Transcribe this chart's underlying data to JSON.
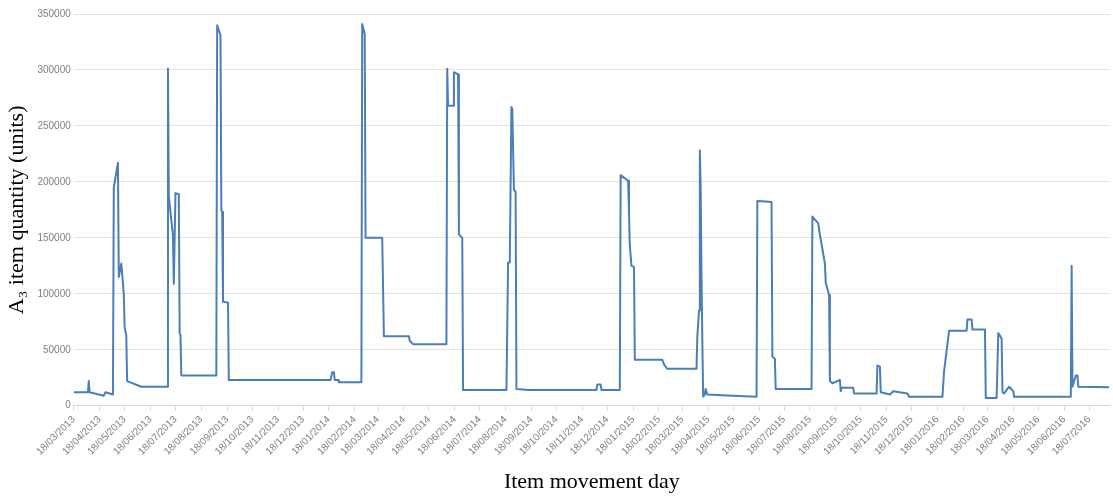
{
  "chart_data": {
    "type": "line",
    "xlabel": "Item movement day",
    "ylabel": "A₃ item quantity (units)",
    "color": "#4a7ebb",
    "grid": "y",
    "legend": false,
    "marker": "none",
    "line_style": "solid",
    "xlim": [
      "2013-03-18",
      "2016-08-12"
    ],
    "ylim": [
      0,
      350000
    ],
    "yticks": [
      0,
      50000,
      100000,
      150000,
      200000,
      250000,
      300000,
      350000
    ],
    "xticks": [
      {
        "value": "2013-03-18",
        "label": "18/03/2013"
      },
      {
        "value": "2013-04-18",
        "label": "18/04/2013"
      },
      {
        "value": "2013-05-18",
        "label": "18/05/2013"
      },
      {
        "value": "2013-06-18",
        "label": "18/06/2013"
      },
      {
        "value": "2013-07-18",
        "label": "18/07/2013"
      },
      {
        "value": "2013-08-18",
        "label": "18/08/2013"
      },
      {
        "value": "2013-09-18",
        "label": "18/09/2013"
      },
      {
        "value": "2013-10-18",
        "label": "18/10/2013"
      },
      {
        "value": "2013-11-18",
        "label": "18/11/2013"
      },
      {
        "value": "2013-12-18",
        "label": "18/12/2013"
      },
      {
        "value": "2014-01-18",
        "label": "18/01/2014"
      },
      {
        "value": "2014-02-18",
        "label": "18/02/2014"
      },
      {
        "value": "2014-03-18",
        "label": "18/03/2014"
      },
      {
        "value": "2014-04-18",
        "label": "18/04/2014"
      },
      {
        "value": "2014-05-18",
        "label": "18/05/2014"
      },
      {
        "value": "2014-06-18",
        "label": "18/06/2014"
      },
      {
        "value": "2014-07-18",
        "label": "18/07/2014"
      },
      {
        "value": "2014-08-18",
        "label": "18/08/2014"
      },
      {
        "value": "2014-09-18",
        "label": "18/09/2014"
      },
      {
        "value": "2014-10-18",
        "label": "18/10/2014"
      },
      {
        "value": "2014-11-18",
        "label": "18/11/2014"
      },
      {
        "value": "2014-12-18",
        "label": "18/12/2014"
      },
      {
        "value": "2015-01-18",
        "label": "18/01/2015"
      },
      {
        "value": "2015-02-18",
        "label": "18/02/2015"
      },
      {
        "value": "2015-03-18",
        "label": "18/03/2015"
      },
      {
        "value": "2015-04-18",
        "label": "18/04/2015"
      },
      {
        "value": "2015-05-18",
        "label": "18/05/2015"
      },
      {
        "value": "2015-06-18",
        "label": "18/06/2015"
      },
      {
        "value": "2015-07-18",
        "label": "18/07/2015"
      },
      {
        "value": "2015-08-18",
        "label": "18/08/2015"
      },
      {
        "value": "2015-09-18",
        "label": "18/09/2015"
      },
      {
        "value": "2015-10-18",
        "label": "18/10/2015"
      },
      {
        "value": "2015-11-18",
        "label": "18/11/2015"
      },
      {
        "value": "2015-12-18",
        "label": "18/12/2015"
      },
      {
        "value": "2016-01-18",
        "label": "18/01/2016"
      },
      {
        "value": "2016-02-18",
        "label": "18/02/2016"
      },
      {
        "value": "2016-03-18",
        "label": "18/03/2016"
      },
      {
        "value": "2016-04-18",
        "label": "18/04/2016"
      },
      {
        "value": "2016-05-18",
        "label": "18/05/2016"
      },
      {
        "value": "2016-06-18",
        "label": "18/06/2016"
      },
      {
        "value": "2016-07-18",
        "label": "18/07/2016"
      }
    ],
    "x": [
      "2013-03-18",
      "2013-04-04",
      "2013-04-05",
      "2013-04-06",
      "2013-04-23",
      "2013-04-25",
      "2013-05-04",
      "2013-05-05",
      "2013-05-10",
      "2013-05-11",
      "2013-05-14",
      "2013-05-17",
      "2013-05-18",
      "2013-05-20",
      "2013-05-21",
      "2013-06-07",
      "2013-07-08",
      "2013-07-09",
      "2013-07-10",
      "2013-07-15",
      "2013-07-16",
      "2013-07-18",
      "2013-07-22",
      "2013-07-23",
      "2013-07-24",
      "2013-07-25",
      "2013-09-05",
      "2013-09-06",
      "2013-09-10",
      "2013-09-11",
      "2013-09-12",
      "2013-09-13",
      "2013-09-19",
      "2013-09-20",
      "2014-01-20",
      "2014-01-22",
      "2014-01-24",
      "2014-01-25",
      "2014-01-29",
      "2014-01-30",
      "2014-02-26",
      "2014-02-27",
      "2014-03-02",
      "2014-03-03",
      "2014-03-23",
      "2014-03-25",
      "2014-04-24",
      "2014-04-25",
      "2014-04-29",
      "2014-06-08",
      "2014-06-09",
      "2014-06-10",
      "2014-06-16",
      "2014-06-17",
      "2014-06-22",
      "2014-06-23",
      "2014-06-27",
      "2014-06-28",
      "2014-08-19",
      "2014-08-21",
      "2014-08-23",
      "2014-08-25",
      "2014-08-26",
      "2014-08-28",
      "2014-08-30",
      "2014-08-31",
      "2014-09-15",
      "2014-12-05",
      "2014-12-06",
      "2014-12-10",
      "2014-12-11",
      "2015-01-02",
      "2015-01-03",
      "2015-01-12",
      "2015-01-13",
      "2015-01-14",
      "2015-01-16",
      "2015-01-19",
      "2015-01-20",
      "2015-02-22",
      "2015-02-24",
      "2015-02-28",
      "2015-04-04",
      "2015-04-05",
      "2015-04-07",
      "2015-04-08",
      "2015-04-09",
      "2015-04-10",
      "2015-04-11",
      "2015-04-12",
      "2015-04-14",
      "2015-04-15",
      "2015-04-17",
      "2015-05-17",
      "2015-06-15",
      "2015-06-16",
      "2015-07-03",
      "2015-07-04",
      "2015-07-07",
      "2015-07-08",
      "2015-08-20",
      "2015-08-21",
      "2015-08-28",
      "2015-08-30",
      "2015-09-05",
      "2015-09-06",
      "2015-09-10",
      "2015-09-11",
      "2015-09-14",
      "2015-09-23",
      "2015-09-24",
      "2015-09-25",
      "2015-10-09",
      "2015-10-10",
      "2015-11-06",
      "2015-11-07",
      "2015-11-10",
      "2015-11-11",
      "2015-11-22",
      "2015-11-26",
      "2015-12-13",
      "2015-12-15",
      "2016-01-24",
      "2016-01-26",
      "2016-02-01",
      "2016-02-22",
      "2016-02-23",
      "2016-02-28",
      "2016-02-29",
      "2016-03-15",
      "2016-03-16",
      "2016-03-29",
      "2016-03-31",
      "2016-04-04",
      "2016-04-05",
      "2016-04-07",
      "2016-04-13",
      "2016-04-18",
      "2016-04-19",
      "2016-06-26",
      "2016-06-27",
      "2016-06-28",
      "2016-07-02",
      "2016-07-04",
      "2016-07-05",
      "2016-08-11"
    ],
    "values": [
      12000,
      12000,
      22000,
      12000,
      9000,
      12000,
      10000,
      195000,
      217000,
      115000,
      127000,
      100000,
      70000,
      63000,
      22000,
      17000,
      17000,
      301000,
      187000,
      152000,
      109000,
      190000,
      189000,
      65000,
      63000,
      27000,
      27000,
      340000,
      331000,
      175000,
      173000,
      93000,
      92000,
      23000,
      23000,
      30000,
      30000,
      23000,
      23000,
      21000,
      21000,
      341000,
      332000,
      150000,
      150000,
      62000,
      62000,
      58000,
      55000,
      55000,
      301000,
      268000,
      268000,
      298000,
      296000,
      153000,
      150000,
      14000,
      14000,
      128000,
      128000,
      267000,
      265000,
      193000,
      191000,
      15000,
      14000,
      14000,
      19000,
      19000,
      14000,
      14000,
      206000,
      201000,
      173000,
      143000,
      125000,
      124000,
      41000,
      41000,
      37000,
      33000,
      33000,
      62000,
      85000,
      228000,
      194000,
      115000,
      57000,
      8000,
      10000,
      15000,
      10000,
      9000,
      8000,
      183000,
      182000,
      44000,
      42000,
      15000,
      15000,
      169000,
      163000,
      153000,
      127000,
      110000,
      99000,
      22000,
      20000,
      23000,
      13000,
      16000,
      16000,
      11000,
      11000,
      36000,
      35000,
      12000,
      10000,
      13000,
      11000,
      8000,
      8000,
      31000,
      67000,
      67000,
      77000,
      77000,
      68000,
      68000,
      7000,
      7000,
      65000,
      60000,
      12000,
      11000,
      17000,
      13000,
      8000,
      8000,
      125000,
      17000,
      27000,
      27000,
      17000,
      16500
    ]
  }
}
